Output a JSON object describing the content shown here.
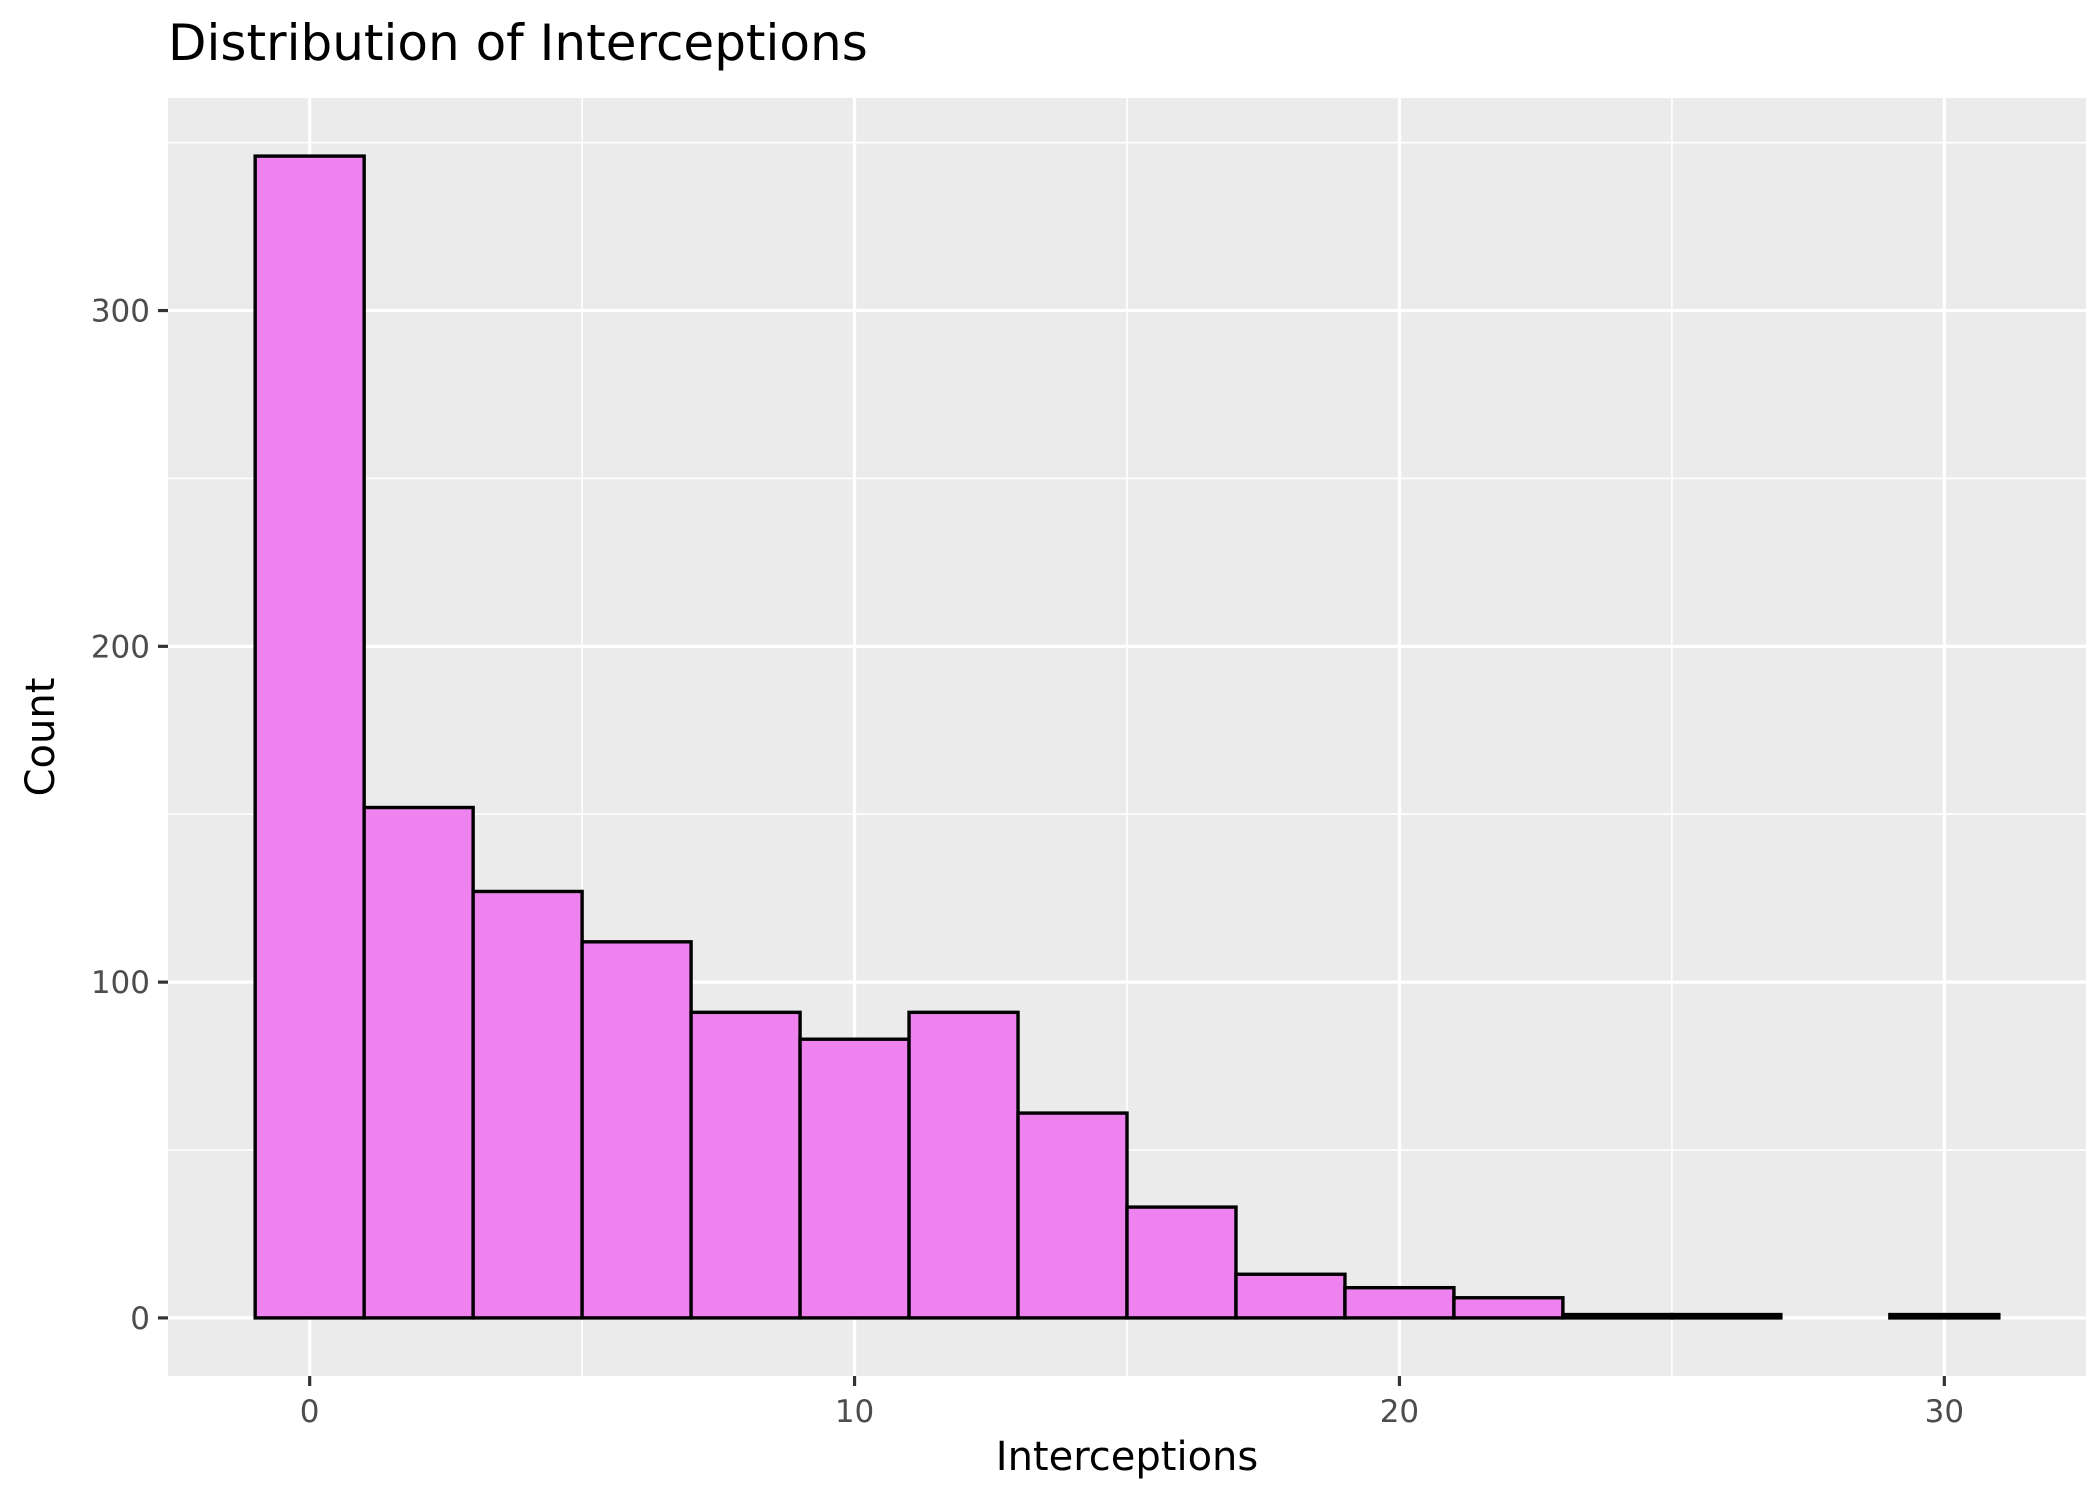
{
  "chart_data": {
    "type": "bar",
    "title": "Distribution of Interceptions",
    "xlabel": "Interceptions",
    "ylabel": "Count",
    "bin_width": 2,
    "bins": [
      {
        "start": -1,
        "end": 1,
        "count": 346
      },
      {
        "start": 1,
        "end": 3,
        "count": 152
      },
      {
        "start": 3,
        "end": 5,
        "count": 127
      },
      {
        "start": 5,
        "end": 7,
        "count": 112
      },
      {
        "start": 7,
        "end": 9,
        "count": 91
      },
      {
        "start": 9,
        "end": 11,
        "count": 83
      },
      {
        "start": 11,
        "end": 13,
        "count": 91
      },
      {
        "start": 13,
        "end": 15,
        "count": 61
      },
      {
        "start": 15,
        "end": 17,
        "count": 33
      },
      {
        "start": 17,
        "end": 19,
        "count": 13
      },
      {
        "start": 19,
        "end": 21,
        "count": 9
      },
      {
        "start": 21,
        "end": 23,
        "count": 6
      },
      {
        "start": 23,
        "end": 25,
        "count": 1
      },
      {
        "start": 25,
        "end": 27,
        "count": 1
      },
      {
        "start": 27,
        "end": 29,
        "count": 0
      },
      {
        "start": 29,
        "end": 31,
        "count": 1
      }
    ],
    "xlim": [
      -2.6,
      32.6
    ],
    "ylim": [
      -17.3,
      363.3
    ],
    "x_ticks": [
      0,
      10,
      20,
      30
    ],
    "x_tick_labels": [
      "0",
      "10",
      "20",
      "30"
    ],
    "y_ticks": [
      0,
      100,
      200,
      300
    ],
    "y_tick_labels": [
      "0",
      "100",
      "200",
      "300"
    ],
    "grid": true,
    "legend": "none",
    "colors": {
      "bar_fill": "#ee82ee",
      "bar_stroke": "#000000",
      "panel_background": "#ebebeb",
      "grid": "#ffffff",
      "tick_label": "#4d4d4d"
    }
  }
}
